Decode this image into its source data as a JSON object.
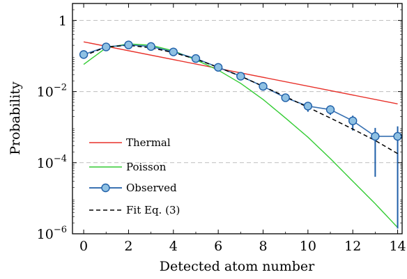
{
  "chart_data": {
    "type": "line",
    "xlabel": "Detected atom number",
    "ylabel": "Probability",
    "xlim": [
      -0.5,
      14.2
    ],
    "ylim": [
      1e-06,
      3
    ],
    "yscale": "log",
    "x_ticks": [
      0,
      2,
      4,
      6,
      8,
      10,
      12,
      14
    ],
    "x_tick_labels": [
      "0",
      "2",
      "4",
      "6",
      "8",
      "10",
      "12",
      "14"
    ],
    "y_ticks": [
      {
        "value": 1e-06,
        "base": "10",
        "exp": "−6"
      },
      {
        "value": 0.0001,
        "base": "10",
        "exp": "−4"
      },
      {
        "value": 0.01,
        "base": "10",
        "exp": "−2"
      },
      {
        "value": 1,
        "base": "1",
        "exp": ""
      }
    ],
    "grid": "horizontal dashed",
    "legend_position": "lower-left",
    "colors": {
      "thermal": "#e8312a",
      "poisson": "#33cc33",
      "observed_line": "#1f5fa8",
      "observed_fill": "#8fc1e3",
      "fit": "#000000",
      "grid": "#bdbdbd"
    },
    "series": [
      {
        "name": "Thermal",
        "style": "solid",
        "x": [
          0,
          14
        ],
        "y": [
          0.25,
          0.0045
        ]
      },
      {
        "name": "Poisson",
        "style": "solid",
        "x": [
          0,
          1,
          2,
          3,
          4,
          5,
          6,
          7,
          8,
          9,
          10,
          11,
          12,
          13,
          14
        ],
        "y": [
          0.058,
          0.17,
          0.22,
          0.2,
          0.14,
          0.078,
          0.04,
          0.017,
          0.006,
          0.0018,
          0.00052,
          0.00013,
          3e-05,
          7e-06,
          1.5e-06
        ]
      },
      {
        "name": "Observed",
        "style": "markers+line",
        "x": [
          0,
          1,
          2,
          3,
          4,
          5,
          6,
          7,
          8,
          9,
          10,
          11,
          12,
          13,
          14
        ],
        "y": [
          0.11,
          0.18,
          0.205,
          0.185,
          0.13,
          0.085,
          0.048,
          0.027,
          0.014,
          0.0067,
          0.0039,
          0.0031,
          0.0015,
          0.00055,
          0.00055
        ],
        "err_low": [
          0.105,
          0.173,
          0.197,
          0.178,
          0.125,
          0.081,
          0.046,
          0.026,
          0.0133,
          0.0059,
          0.0027,
          0.0022,
          0.0008,
          4e-05,
          1.4e-06
        ],
        "err_high": [
          0.115,
          0.187,
          0.213,
          0.192,
          0.135,
          0.089,
          0.05,
          0.028,
          0.0147,
          0.0075,
          0.0049,
          0.0041,
          0.0021,
          0.00095,
          0.00105
        ]
      },
      {
        "name": "Fit Eq. (3)",
        "style": "dashed",
        "x": [
          0,
          1,
          2,
          3,
          4,
          5,
          6,
          7,
          8,
          9,
          10,
          11,
          12,
          13,
          14
        ],
        "y": [
          0.1,
          0.18,
          0.2,
          0.17,
          0.125,
          0.082,
          0.048,
          0.027,
          0.014,
          0.0072,
          0.0036,
          0.0018,
          0.00088,
          0.00042,
          0.00018
        ]
      }
    ]
  }
}
